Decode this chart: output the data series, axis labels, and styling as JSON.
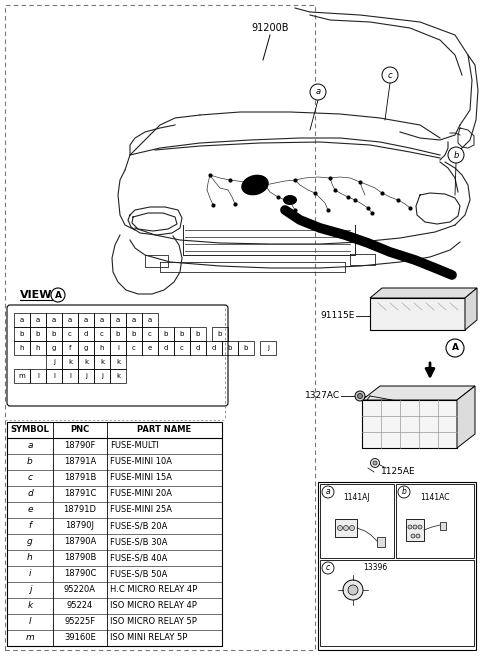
{
  "bg_color": "#ffffff",
  "part_number_label": "91200B",
  "part_91115E": "91115E",
  "part_1327AC": "1327AC",
  "part_1125AE": "1125AE",
  "part_A_label": "A",
  "table_headers": [
    "SYMBOL",
    "PNC",
    "PART NAME"
  ],
  "table_rows": [
    [
      "a",
      "18790F",
      "FUSE-MULTI"
    ],
    [
      "b",
      "18791A",
      "FUSE-MINI 10A"
    ],
    [
      "c",
      "18791B",
      "FUSE-MINI 15A"
    ],
    [
      "d",
      "18791C",
      "FUSE-MINI 20A"
    ],
    [
      "e",
      "18791D",
      "FUSE-MINI 25A"
    ],
    [
      "f",
      "18790J",
      "FUSE-S/B 20A"
    ],
    [
      "g",
      "18790A",
      "FUSE-S/B 30A"
    ],
    [
      "h",
      "18790B",
      "FUSE-S/B 40A"
    ],
    [
      "i",
      "18790C",
      "FUSE-S/B 50A"
    ],
    [
      "j",
      "95220A",
      "H.C MICRO RELAY 4P"
    ],
    [
      "k",
      "95224",
      "ISO MICRO RELAY 4P"
    ],
    [
      "l",
      "95225F",
      "ISO MICRO RELAY 5P"
    ],
    [
      "m",
      "39160E",
      "ISO MINI RELAY 5P"
    ]
  ],
  "view_grid_rows": [
    [
      "a",
      "a",
      "a",
      "a",
      "a",
      "a",
      "a",
      "a",
      "a"
    ],
    [
      "b",
      "b",
      "b",
      "c",
      "d",
      "c",
      "b",
      "b",
      "c",
      "b",
      "b",
      "b",
      "b"
    ],
    [
      "h",
      "h",
      "g",
      "f",
      "g",
      "h",
      "i",
      "c",
      "e",
      "d",
      "c",
      "d",
      "d",
      "b",
      "b",
      "j"
    ],
    [
      "j",
      "k",
      "k",
      "k",
      "k"
    ],
    [
      "m",
      "l",
      "l",
      "l",
      "j",
      "j",
      "k"
    ]
  ],
  "view_row4_offsets": [
    2,
    3,
    4,
    5,
    6
  ],
  "connector_a_label": "a",
  "connector_b_label": "b",
  "connector_c_label": "c",
  "label_1141AJ": "1141AJ",
  "label_1141AC": "1141AC",
  "label_13396": "13396",
  "car_label_a": "a",
  "car_label_b": "b",
  "car_label_c": "c",
  "dashed_color": "#777777"
}
